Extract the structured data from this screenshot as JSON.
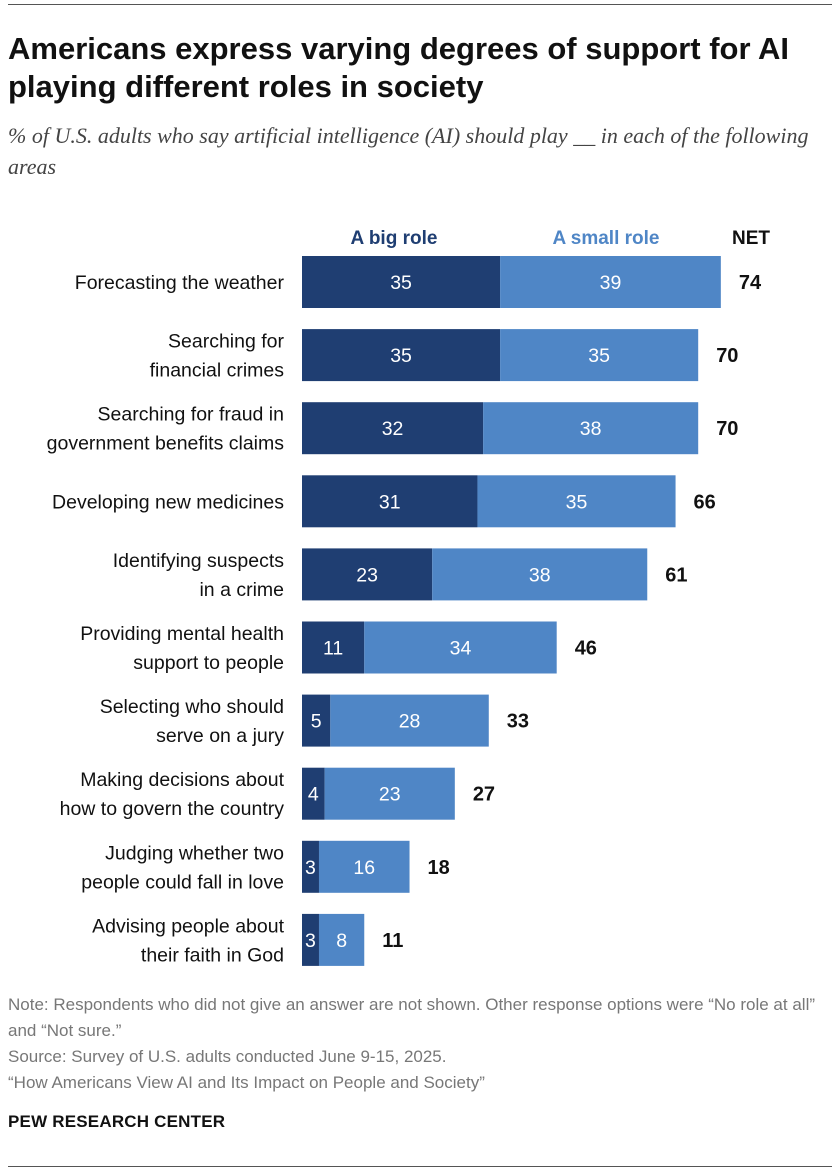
{
  "title": "Americans express varying degrees of support for AI playing different roles in society",
  "subtitle": "% of U.S. adults who say artificial intelligence (AI) should play __ in each of the following areas",
  "chart_data": {
    "type": "bar",
    "orientation": "horizontal",
    "stacked": true,
    "legend_position": "top",
    "categories": [
      [
        "Forecasting the weather"
      ],
      [
        "Searching for",
        "financial crimes"
      ],
      [
        "Searching for fraud in",
        "government benefits claims"
      ],
      [
        "Developing new medicines"
      ],
      [
        "Identifying suspects",
        "in a crime"
      ],
      [
        "Providing mental health",
        "support to people"
      ],
      [
        "Selecting who should",
        "serve on a jury"
      ],
      [
        "Making decisions about",
        "how to govern the country"
      ],
      [
        "Judging whether two",
        "people could fall in love"
      ],
      [
        "Advising people about",
        "their faith in God"
      ]
    ],
    "series": [
      {
        "name": "A big role",
        "color": "#1f3e72",
        "label_color": "#1f3e72",
        "values": [
          35,
          35,
          32,
          31,
          23,
          11,
          5,
          4,
          3,
          3
        ]
      },
      {
        "name": "A  small role",
        "color": "#4f86c6",
        "label_color": "#4f86c6",
        "values": [
          39,
          35,
          38,
          35,
          38,
          34,
          28,
          23,
          16,
          8
        ]
      }
    ],
    "net_label": "NET",
    "net": [
      74,
      70,
      70,
      66,
      61,
      46,
      33,
      27,
      18,
      11
    ]
  },
  "notes": {
    "note": "Note: Respondents who did not give an answer are not shown. Other response options were “No role at all” and “Not sure.”",
    "source": "Source: Survey of U.S. adults conducted June 9-15, 2025.",
    "report": "“How Americans View AI and Its Impact on People and Society”"
  },
  "brand": "PEW RESEARCH CENTER"
}
